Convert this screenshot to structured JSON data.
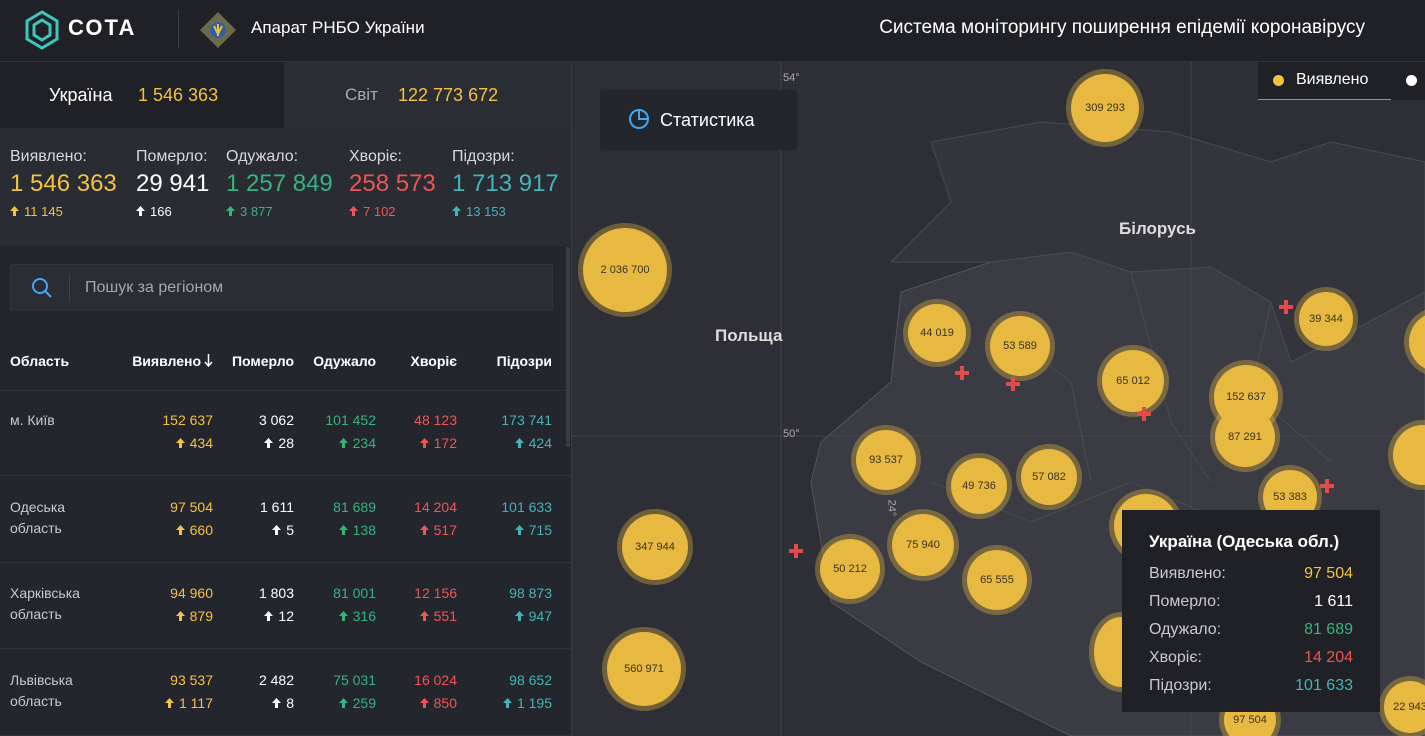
{
  "header": {
    "logo": "СОТА",
    "org": "Апарат РНБО України",
    "title": "Система моніторингу поширення епідемії коронавірусу"
  },
  "tabs": [
    {
      "label": "Україна",
      "value": "1 546 363"
    },
    {
      "label": "Світ",
      "value": "122 773 672"
    }
  ],
  "summary": [
    {
      "label": "Виявлено:",
      "value": "1 546 363",
      "delta": "11 145"
    },
    {
      "label": "Померло:",
      "value": "29 941",
      "delta": "166"
    },
    {
      "label": "Одужало:",
      "value": "1 257 849",
      "delta": "3 877"
    },
    {
      "label": "Хворіє:",
      "value": "258 573",
      "delta": "7 102"
    },
    {
      "label": "Підозри:",
      "value": "1 713 917",
      "delta": "13 153"
    }
  ],
  "search": {
    "placeholder": "Пошук за регіоном"
  },
  "table": {
    "columns": [
      "Область",
      "Виявлено",
      "Померло",
      "Одужало",
      "Хворіє",
      "Підозри"
    ],
    "rows": [
      {
        "region": "м. Київ",
        "values": [
          "152 637",
          "3 062",
          "101 452",
          "48 123",
          "173 741"
        ],
        "deltas": [
          "434",
          "28",
          "234",
          "172",
          "424"
        ]
      },
      {
        "region": "Одеська область",
        "values": [
          "97 504",
          "1 611",
          "81 689",
          "14 204",
          "101 633"
        ],
        "deltas": [
          "660",
          "5",
          "138",
          "517",
          "715"
        ]
      },
      {
        "region": "Харківська область",
        "values": [
          "94 960",
          "1 803",
          "81 001",
          "12 156",
          "98 873"
        ],
        "deltas": [
          "879",
          "12",
          "316",
          "551",
          "947"
        ]
      },
      {
        "region": "Львівська область",
        "values": [
          "93 537",
          "2 482",
          "75 031",
          "16 024",
          "98 652"
        ],
        "deltas": [
          "1 117",
          "8",
          "259",
          "850",
          "1 195"
        ]
      }
    ]
  },
  "map": {
    "button": "Статистика",
    "legend": "Виявлено",
    "countries": [
      "Польща",
      "Білорусь"
    ],
    "graticule": [
      "54°",
      "50°",
      "24°"
    ],
    "clusters": [
      "309 293",
      "2 036 700",
      "44 019",
      "53 589",
      "65 012",
      "152 637",
      "87 291",
      "39 344",
      "93 537",
      "49 736",
      "57 082",
      "53 383",
      "347 944",
      "50 212",
      "75 940",
      "65 555",
      "560 971",
      "22 943",
      "97 504"
    ]
  },
  "tooltip": {
    "title": "Україна (Одеська обл.)",
    "rows": [
      {
        "label": "Виявлено:",
        "value": "97 504"
      },
      {
        "label": "Померло:",
        "value": "1 611"
      },
      {
        "label": "Одужало:",
        "value": "81 689"
      },
      {
        "label": "Хворіє:",
        "value": "14 204"
      },
      {
        "label": "Підозри:",
        "value": "101 633"
      }
    ]
  }
}
